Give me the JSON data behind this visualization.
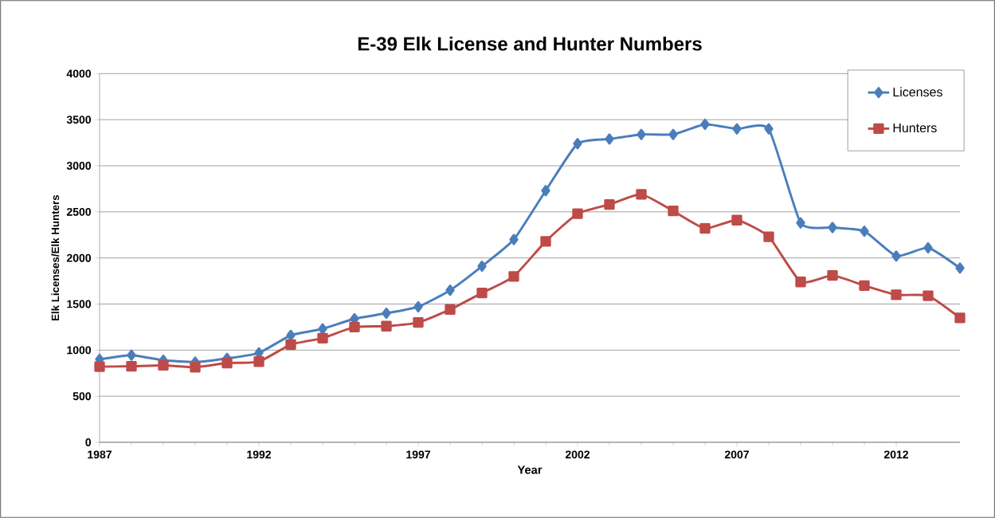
{
  "chart_data": {
    "type": "line",
    "title": "E-39 Elk License and Hunter Numbers",
    "xlabel": "Year",
    "ylabel": "Elk Licenses/Elk Hunters",
    "x": [
      1987,
      1988,
      1989,
      1990,
      1991,
      1992,
      1993,
      1994,
      1995,
      1996,
      1997,
      1998,
      1999,
      2000,
      2001,
      2002,
      2003,
      2004,
      2005,
      2006,
      2007,
      2008,
      2009,
      2010,
      2011,
      2012,
      2013,
      2014
    ],
    "series": [
      {
        "name": "Licenses",
        "color": "#4a7ebb",
        "marker": "diamond",
        "values": [
          900,
          945,
          890,
          870,
          910,
          970,
          1160,
          1230,
          1340,
          1400,
          1470,
          1650,
          1910,
          2200,
          2730,
          3240,
          3290,
          3340,
          3340,
          3450,
          3400,
          3400,
          2380,
          2330,
          2290,
          2020,
          2110,
          1890
        ]
      },
      {
        "name": "Hunters",
        "color": "#be4b48",
        "marker": "square",
        "values": [
          820,
          825,
          835,
          815,
          860,
          875,
          1060,
          1130,
          1250,
          1260,
          1300,
          1440,
          1620,
          1800,
          2180,
          2480,
          2580,
          2690,
          2510,
          2320,
          2410,
          2230,
          1740,
          1810,
          1700,
          1600,
          1590,
          1350
        ]
      }
    ],
    "xlim": [
      1987,
      2014
    ],
    "xticks": [
      1987,
      1992,
      1997,
      2002,
      2007,
      2012
    ],
    "ylim": [
      0,
      4000
    ],
    "yticks": [
      0,
      500,
      1000,
      1500,
      2000,
      2500,
      3000,
      3500,
      4000
    ],
    "grid": "y",
    "legend": "top right",
    "line_style": "solid"
  }
}
